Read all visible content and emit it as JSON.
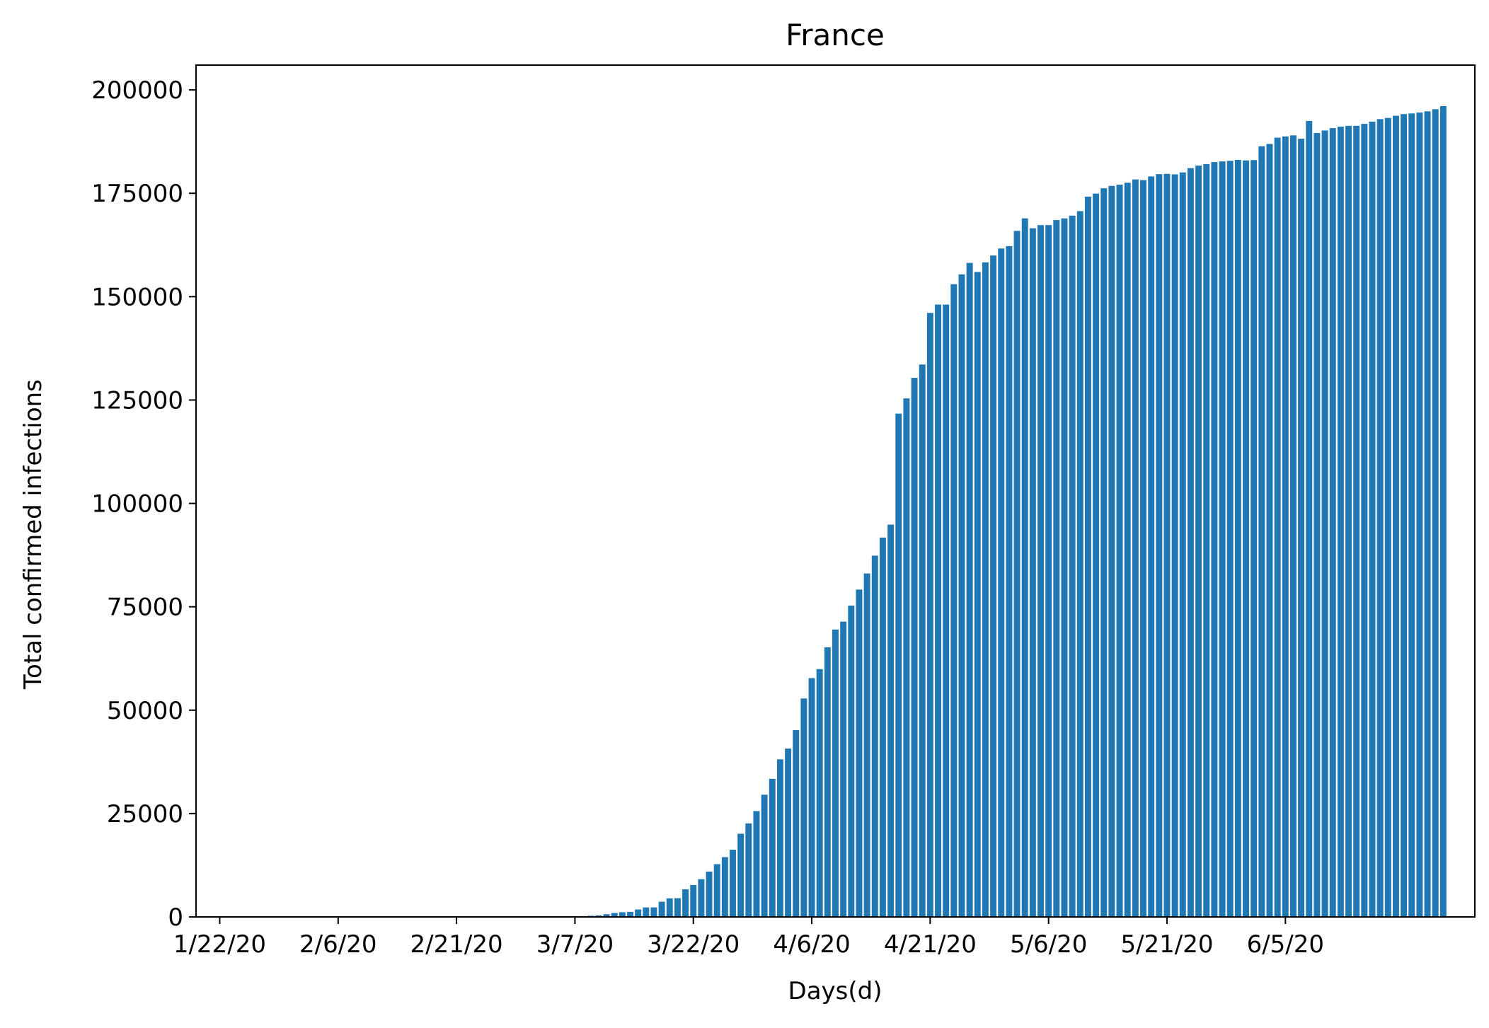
{
  "chart_data": {
    "type": "bar",
    "title": "France",
    "xlabel": "Days(d)",
    "ylabel": "Total confirmed infections",
    "ylim": [
      0,
      206000
    ],
    "yticks": [
      0,
      25000,
      50000,
      75000,
      100000,
      125000,
      150000,
      175000,
      200000
    ],
    "ytick_labels": [
      "0",
      "25000",
      "50000",
      "75000",
      "100000",
      "125000",
      "150000",
      "175000",
      "200000"
    ],
    "start_date": "1/22/20",
    "xtick_labels": [
      "1/22/20",
      "2/6/20",
      "2/21/20",
      "3/7/20",
      "3/22/20",
      "4/6/20",
      "4/21/20",
      "5/6/20",
      "5/21/20",
      "6/5/20"
    ],
    "grid": false,
    "legend": "none",
    "bar_color": "#1f77b4",
    "values": [
      0,
      0,
      2,
      3,
      3,
      3,
      4,
      5,
      5,
      5,
      6,
      6,
      6,
      6,
      6,
      6,
      11,
      11,
      11,
      11,
      11,
      11,
      11,
      12,
      12,
      12,
      12,
      12,
      12,
      12,
      12,
      12,
      12,
      12,
      12,
      12,
      12,
      12,
      12,
      12,
      0,
      0,
      0,
      100,
      130,
      191,
      204,
      288,
      380,
      656,
      959,
      1136,
      1219,
      1794,
      2293,
      2293,
      3681,
      4496,
      4532,
      6683,
      7715,
      9124,
      10970,
      12758,
      14463,
      16243,
      20123,
      22622,
      25600,
      29551,
      33402,
      38105,
      40708,
      45170,
      52827,
      57749,
      59929,
      65202,
      69500,
      71412,
      75300,
      79163,
      83057,
      87366,
      91738,
      94863,
      121712,
      125394,
      130365,
      133585,
      146075,
      148084,
      148084,
      153011,
      155393,
      158168,
      155980,
      158303,
      159952,
      161644,
      162220,
      165911,
      168935,
      166543,
      167299,
      167305,
      168518,
      168925,
      169583,
      170687,
      174191,
      174918,
      176202,
      176782,
      177094,
      177547,
      178349,
      178184,
      179069,
      179630,
      179693,
      179577,
      180044,
      181082,
      181700,
      182036,
      182548,
      182709,
      182847,
      183067,
      182942,
      183038,
      186364,
      186923,
      188450,
      188752,
      189009,
      188196,
      192493,
      189569,
      190180,
      190759,
      191102,
      191313,
      191313,
      191779,
      192330,
      192934,
      193220,
      193746,
      194153,
      194305,
      194518,
      194825,
      195334,
      196083
    ]
  }
}
